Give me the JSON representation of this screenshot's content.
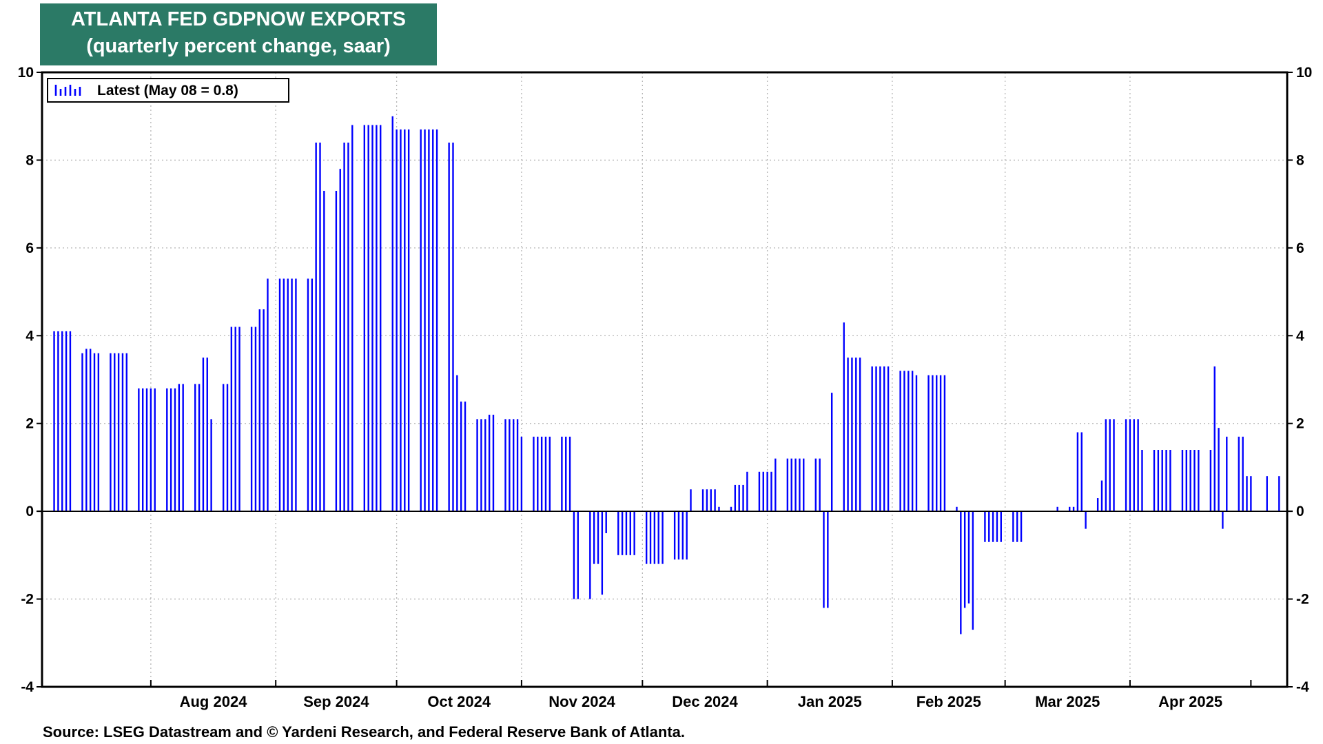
{
  "title": {
    "line1": "ATLANTA FED GDPNOW EXPORTS",
    "line2": "(quarterly percent change, saar)"
  },
  "source": "Source: LSEG Datastream and © Yardeni Research, and Federal Reserve Bank of Atlanta.",
  "chart_data": {
    "type": "bar",
    "title": "ATLANTA FED GDPNOW EXPORTS",
    "subtitle": "(quarterly percent change, saar)",
    "xlabel": "",
    "ylabel": "",
    "ylim": [
      -4,
      10
    ],
    "yticks": [
      -4,
      -2,
      0,
      2,
      4,
      6,
      8,
      10
    ],
    "yticks_labels": [
      "-4",
      "-2",
      "0",
      "2",
      "4",
      "6",
      "8",
      "10"
    ],
    "grid": true,
    "y_axis_both_sides": true,
    "x_range": [
      "2024-07-05",
      "2025-05-10"
    ],
    "month_ticks": [
      {
        "label": "Aug 2024",
        "date": "2024-08-01"
      },
      {
        "label": "Sep 2024",
        "date": "2024-09-01"
      },
      {
        "label": "Oct 2024",
        "date": "2024-10-01"
      },
      {
        "label": "Nov 2024",
        "date": "2024-11-01"
      },
      {
        "label": "Dec 2024",
        "date": "2024-12-01"
      },
      {
        "label": "Jan 2025",
        "date": "2025-01-01"
      },
      {
        "label": "Feb 2025",
        "date": "2025-02-01"
      },
      {
        "label": "Mar 2025",
        "date": "2025-03-01"
      },
      {
        "label": "Apr 2025",
        "date": "2025-04-01"
      }
    ],
    "legend": {
      "position": "top-left",
      "entry": "Latest (May 08 = 0.8)"
    },
    "series": [
      {
        "name": "Latest (May 08 = 0.8)",
        "color": "#0000ff",
        "points": [
          [
            "2024-07-08",
            4.1
          ],
          [
            "2024-07-09",
            4.1
          ],
          [
            "2024-07-10",
            4.1
          ],
          [
            "2024-07-11",
            4.1
          ],
          [
            "2024-07-12",
            4.1
          ],
          [
            "2024-07-15",
            3.6
          ],
          [
            "2024-07-16",
            3.7
          ],
          [
            "2024-07-17",
            3.7
          ],
          [
            "2024-07-18",
            3.6
          ],
          [
            "2024-07-19",
            3.6
          ],
          [
            "2024-07-22",
            3.6
          ],
          [
            "2024-07-23",
            3.6
          ],
          [
            "2024-07-24",
            3.6
          ],
          [
            "2024-07-25",
            3.6
          ],
          [
            "2024-07-26",
            3.6
          ],
          [
            "2024-07-29",
            2.8
          ],
          [
            "2024-07-30",
            2.8
          ],
          [
            "2024-07-31",
            2.8
          ],
          [
            "2024-08-01",
            2.8
          ],
          [
            "2024-08-02",
            2.8
          ],
          [
            "2024-08-05",
            2.8
          ],
          [
            "2024-08-06",
            2.8
          ],
          [
            "2024-08-07",
            2.8
          ],
          [
            "2024-08-08",
            2.9
          ],
          [
            "2024-08-09",
            2.9
          ],
          [
            "2024-08-12",
            2.9
          ],
          [
            "2024-08-13",
            2.9
          ],
          [
            "2024-08-14",
            3.5
          ],
          [
            "2024-08-15",
            3.5
          ],
          [
            "2024-08-16",
            2.1
          ],
          [
            "2024-08-19",
            2.9
          ],
          [
            "2024-08-20",
            2.9
          ],
          [
            "2024-08-21",
            4.2
          ],
          [
            "2024-08-22",
            4.2
          ],
          [
            "2024-08-23",
            4.2
          ],
          [
            "2024-08-26",
            4.2
          ],
          [
            "2024-08-27",
            4.2
          ],
          [
            "2024-08-28",
            4.6
          ],
          [
            "2024-08-29",
            4.6
          ],
          [
            "2024-08-30",
            5.3
          ],
          [
            "2024-09-02",
            5.3
          ],
          [
            "2024-09-03",
            5.3
          ],
          [
            "2024-09-04",
            5.3
          ],
          [
            "2024-09-05",
            5.3
          ],
          [
            "2024-09-06",
            5.3
          ],
          [
            "2024-09-09",
            5.3
          ],
          [
            "2024-09-10",
            5.3
          ],
          [
            "2024-09-11",
            8.4
          ],
          [
            "2024-09-12",
            8.4
          ],
          [
            "2024-09-13",
            7.3
          ],
          [
            "2024-09-16",
            7.3
          ],
          [
            "2024-09-17",
            7.8
          ],
          [
            "2024-09-18",
            8.4
          ],
          [
            "2024-09-19",
            8.4
          ],
          [
            "2024-09-20",
            8.8
          ],
          [
            "2024-09-23",
            8.8
          ],
          [
            "2024-09-24",
            8.8
          ],
          [
            "2024-09-25",
            8.8
          ],
          [
            "2024-09-26",
            8.8
          ],
          [
            "2024-09-27",
            8.8
          ],
          [
            "2024-09-30",
            9.0
          ],
          [
            "2024-10-01",
            8.7
          ],
          [
            "2024-10-02",
            8.7
          ],
          [
            "2024-10-03",
            8.7
          ],
          [
            "2024-10-04",
            8.7
          ],
          [
            "2024-10-07",
            8.7
          ],
          [
            "2024-10-08",
            8.7
          ],
          [
            "2024-10-09",
            8.7
          ],
          [
            "2024-10-10",
            8.7
          ],
          [
            "2024-10-11",
            8.7
          ],
          [
            "2024-10-14",
            8.4
          ],
          [
            "2024-10-15",
            8.4
          ],
          [
            "2024-10-16",
            3.1
          ],
          [
            "2024-10-17",
            2.5
          ],
          [
            "2024-10-18",
            2.5
          ],
          [
            "2024-10-21",
            2.1
          ],
          [
            "2024-10-22",
            2.1
          ],
          [
            "2024-10-23",
            2.1
          ],
          [
            "2024-10-24",
            2.2
          ],
          [
            "2024-10-25",
            2.2
          ],
          [
            "2024-10-28",
            2.1
          ],
          [
            "2024-10-29",
            2.1
          ],
          [
            "2024-10-30",
            2.1
          ],
          [
            "2024-10-31",
            2.1
          ],
          [
            "2024-11-01",
            1.7
          ],
          [
            "2024-11-04",
            1.7
          ],
          [
            "2024-11-05",
            1.7
          ],
          [
            "2024-11-06",
            1.7
          ],
          [
            "2024-11-07",
            1.7
          ],
          [
            "2024-11-08",
            1.7
          ],
          [
            "2024-11-11",
            1.7
          ],
          [
            "2024-11-12",
            1.7
          ],
          [
            "2024-11-13",
            1.7
          ],
          [
            "2024-11-14",
            -2.0
          ],
          [
            "2024-11-15",
            -2.0
          ],
          [
            "2024-11-18",
            -2.0
          ],
          [
            "2024-11-19",
            -1.2
          ],
          [
            "2024-11-20",
            -1.2
          ],
          [
            "2024-11-21",
            -1.9
          ],
          [
            "2024-11-22",
            -0.5
          ],
          [
            "2024-11-25",
            -1.0
          ],
          [
            "2024-11-26",
            -1.0
          ],
          [
            "2024-11-27",
            -1.0
          ],
          [
            "2024-11-28",
            -1.0
          ],
          [
            "2024-11-29",
            -1.0
          ],
          [
            "2024-12-02",
            -1.2
          ],
          [
            "2024-12-03",
            -1.2
          ],
          [
            "2024-12-04",
            -1.2
          ],
          [
            "2024-12-05",
            -1.2
          ],
          [
            "2024-12-06",
            -1.2
          ],
          [
            "2024-12-09",
            -1.1
          ],
          [
            "2024-12-10",
            -1.1
          ],
          [
            "2024-12-11",
            -1.1
          ],
          [
            "2024-12-12",
            -1.1
          ],
          [
            "2024-12-13",
            0.5
          ],
          [
            "2024-12-16",
            0.5
          ],
          [
            "2024-12-17",
            0.5
          ],
          [
            "2024-12-18",
            0.5
          ],
          [
            "2024-12-19",
            0.5
          ],
          [
            "2024-12-20",
            0.1
          ],
          [
            "2024-12-23",
            0.1
          ],
          [
            "2024-12-24",
            0.6
          ],
          [
            "2024-12-25",
            0.6
          ],
          [
            "2024-12-26",
            0.6
          ],
          [
            "2024-12-27",
            0.9
          ],
          [
            "2024-12-30",
            0.9
          ],
          [
            "2024-12-31",
            0.9
          ],
          [
            "2025-01-01",
            0.9
          ],
          [
            "2025-01-02",
            0.9
          ],
          [
            "2025-01-03",
            1.2
          ],
          [
            "2025-01-06",
            1.2
          ],
          [
            "2025-01-07",
            1.2
          ],
          [
            "2025-01-08",
            1.2
          ],
          [
            "2025-01-09",
            1.2
          ],
          [
            "2025-01-10",
            1.2
          ],
          [
            "2025-01-13",
            1.2
          ],
          [
            "2025-01-14",
            1.2
          ],
          [
            "2025-01-15",
            -2.2
          ],
          [
            "2025-01-16",
            -2.2
          ],
          [
            "2025-01-17",
            2.7
          ],
          [
            "2025-01-20",
            4.3
          ],
          [
            "2025-01-21",
            3.5
          ],
          [
            "2025-01-22",
            3.5
          ],
          [
            "2025-01-23",
            3.5
          ],
          [
            "2025-01-24",
            3.5
          ],
          [
            "2025-01-27",
            3.3
          ],
          [
            "2025-01-28",
            3.3
          ],
          [
            "2025-01-29",
            3.3
          ],
          [
            "2025-01-30",
            3.3
          ],
          [
            "2025-01-31",
            3.3
          ],
          [
            "2025-02-03",
            3.2
          ],
          [
            "2025-02-04",
            3.2
          ],
          [
            "2025-02-05",
            3.2
          ],
          [
            "2025-02-06",
            3.2
          ],
          [
            "2025-02-07",
            3.1
          ],
          [
            "2025-02-10",
            3.1
          ],
          [
            "2025-02-11",
            3.1
          ],
          [
            "2025-02-12",
            3.1
          ],
          [
            "2025-02-13",
            3.1
          ],
          [
            "2025-02-14",
            3.1
          ],
          [
            "2025-02-17",
            0.1
          ],
          [
            "2025-02-18",
            -2.8
          ],
          [
            "2025-02-19",
            -2.2
          ],
          [
            "2025-02-20",
            -2.1
          ],
          [
            "2025-02-21",
            -2.7
          ],
          [
            "2025-02-24",
            -0.7
          ],
          [
            "2025-02-25",
            -0.7
          ],
          [
            "2025-02-26",
            -0.7
          ],
          [
            "2025-02-27",
            -0.7
          ],
          [
            "2025-02-28",
            -0.7
          ],
          [
            "2025-03-03",
            -0.7
          ],
          [
            "2025-03-04",
            -0.7
          ],
          [
            "2025-03-05",
            -0.7
          ],
          [
            "2025-03-06",
            0.0
          ],
          [
            "2025-03-07",
            0.0
          ],
          [
            "2025-03-10",
            0.0
          ],
          [
            "2025-03-11",
            0.0
          ],
          [
            "2025-03-12",
            0.0
          ],
          [
            "2025-03-13",
            0.0
          ],
          [
            "2025-03-14",
            0.1
          ],
          [
            "2025-03-17",
            0.1
          ],
          [
            "2025-03-18",
            0.1
          ],
          [
            "2025-03-19",
            1.8
          ],
          [
            "2025-03-20",
            1.8
          ],
          [
            "2025-03-21",
            -0.4
          ],
          [
            "2025-03-24",
            0.3
          ],
          [
            "2025-03-25",
            0.7
          ],
          [
            "2025-03-26",
            2.1
          ],
          [
            "2025-03-27",
            2.1
          ],
          [
            "2025-03-28",
            2.1
          ],
          [
            "2025-03-31",
            2.1
          ],
          [
            "2025-04-01",
            2.1
          ],
          [
            "2025-04-02",
            2.1
          ],
          [
            "2025-04-03",
            2.1
          ],
          [
            "2025-04-04",
            1.4
          ],
          [
            "2025-04-07",
            1.4
          ],
          [
            "2025-04-08",
            1.4
          ],
          [
            "2025-04-09",
            1.4
          ],
          [
            "2025-04-10",
            1.4
          ],
          [
            "2025-04-11",
            1.4
          ],
          [
            "2025-04-14",
            1.4
          ],
          [
            "2025-04-15",
            1.4
          ],
          [
            "2025-04-16",
            1.4
          ],
          [
            "2025-04-17",
            1.4
          ],
          [
            "2025-04-18",
            1.4
          ],
          [
            "2025-04-21",
            1.4
          ],
          [
            "2025-04-22",
            3.3
          ],
          [
            "2025-04-23",
            1.9
          ],
          [
            "2025-04-24",
            -0.4
          ],
          [
            "2025-04-25",
            1.7
          ],
          [
            "2025-04-28",
            1.7
          ],
          [
            "2025-04-29",
            1.7
          ],
          [
            "2025-04-30",
            0.8
          ],
          [
            "2025-05-01",
            0.8
          ],
          [
            "2025-05-05",
            0.8
          ],
          [
            "2025-05-08",
            0.8
          ]
        ]
      }
    ]
  }
}
